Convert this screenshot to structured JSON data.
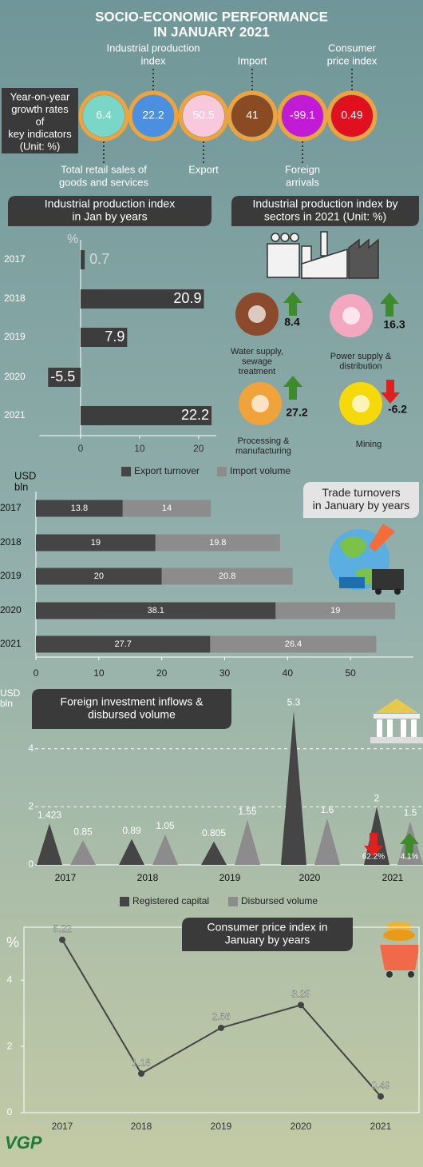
{
  "header": {
    "title": [
      "SOCIO-ECONOMIC PERFORMANCE",
      "IN JANUARY 2021"
    ]
  },
  "key_indicators": {
    "label": [
      "Year-on-year",
      "growth rates",
      "of",
      "key indicators",
      "(Unit: %)"
    ],
    "ring_color": "#f0a33a",
    "items": [
      {
        "name": [
          "Total retail sales of",
          "goods and services"
        ],
        "value": 6.4,
        "color": "#7ad6c6"
      },
      {
        "name": [
          "Industrial production",
          "index"
        ],
        "value": 22.2,
        "color": "#4a8fe0"
      },
      {
        "name": [
          "Export"
        ],
        "value": 50.5,
        "color": "#f8c8dc"
      },
      {
        "name": [
          "Import"
        ],
        "value": 41,
        "color": "#8a4a22"
      },
      {
        "name": [
          "Foreign",
          "arrivals"
        ],
        "value": -99.1,
        "color": "#c21bd6"
      },
      {
        "name": [
          "Consumer",
          "price index"
        ],
        "value": 0.49,
        "color": "#e0101f"
      }
    ]
  },
  "sectors": {
    "title": [
      "Industrial production index by",
      "sectors in 2021  (Unit: %)"
    ],
    "items": [
      {
        "name": [
          "Water supply,",
          "sewage",
          "treatment"
        ],
        "value": 8.4
      },
      {
        "name": [
          "Power supply &",
          "distribution"
        ],
        "value": 16.3
      },
      {
        "name": [
          "Processing &",
          "manufacturing"
        ],
        "value": 27.2
      },
      {
        "name": [
          "Mining"
        ],
        "value": -6.2
      }
    ]
  },
  "chart_data": [
    {
      "type": "hbar",
      "title": [
        "Industrial production index",
        "in Jan by years"
      ],
      "y_label": "%",
      "categories": [
        "2017",
        "2018",
        "2019",
        "2020",
        "2021"
      ],
      "values": [
        0.7,
        20.9,
        7.9,
        -5.5,
        22.2
      ],
      "color": "#3d3d3d",
      "xlim": [
        -7,
        23
      ],
      "xticks": [
        0,
        10,
        20
      ]
    },
    {
      "type": "stacked_hbar",
      "title": [
        "Trade turnovers",
        "in January  by years"
      ],
      "y_label": [
        "USD",
        "bln"
      ],
      "categories": [
        "2017",
        "2018",
        "2019",
        "2020",
        "2021"
      ],
      "series": [
        {
          "name": "Export turnover",
          "color": "#454545",
          "values": [
            13.8,
            19,
            20,
            38.1,
            27.7
          ]
        },
        {
          "name": "Import volume",
          "color": "#8c8c8c",
          "values": [
            14,
            19.8,
            20.8,
            19,
            26.4
          ]
        }
      ],
      "xlim": [
        0,
        60
      ],
      "xticks": [
        0,
        10,
        20,
        30,
        40,
        50
      ]
    },
    {
      "type": "peaks",
      "title": [
        "Foreign investment inflows &",
        "disbursed volume"
      ],
      "y_label": [
        "USD",
        "bln"
      ],
      "categories": [
        "2017",
        "2018",
        "2019",
        "2020",
        "2021"
      ],
      "series": [
        {
          "name": "Registered capital",
          "color": "#454545",
          "values": [
            1.423,
            0.89,
            0.805,
            5.3,
            2
          ]
        },
        {
          "name": "Disbursed volume",
          "color": "#8c8c8c",
          "values": [
            0.85,
            1.05,
            1.55,
            1.6,
            1.5
          ]
        }
      ],
      "annotations": [
        "62.2%",
        "4.1%"
      ],
      "ylim": [
        0,
        5.7
      ],
      "yticks": [
        0,
        2,
        4
      ],
      "grid": true
    },
    {
      "type": "line",
      "title": [
        "Consumer price index in",
        "January by years"
      ],
      "y_label": "%",
      "categories": [
        "2017",
        "2018",
        "2019",
        "2020",
        "2021"
      ],
      "values": [
        5.22,
        1.18,
        2.56,
        3.25,
        0.49
      ],
      "color": "#444444",
      "ylim": [
        0,
        5.6
      ],
      "yticks": [
        0,
        2,
        4
      ]
    }
  ],
  "footer": {
    "logo": "VGP"
  }
}
